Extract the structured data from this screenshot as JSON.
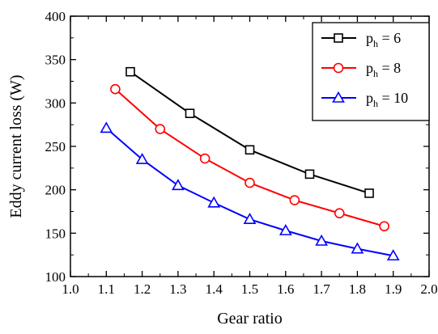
{
  "chart_data": {
    "type": "line",
    "title": "",
    "xlabel": "Gear ratio",
    "ylabel": "Eddy current loss (W)",
    "xlim": [
      1.0,
      2.0
    ],
    "ylim": [
      100,
      400
    ],
    "xticks": [
      "1.0",
      "1.1",
      "1.2",
      "1.3",
      "1.4",
      "1.5",
      "1.6",
      "1.7",
      "1.8",
      "1.9",
      "2.0"
    ],
    "yticks": [
      "100",
      "150",
      "200",
      "250",
      "300",
      "350",
      "400"
    ],
    "grid": false,
    "legend_position": "top-right",
    "series": [
      {
        "name": "p_h = 6",
        "name_main": "p",
        "name_sub": "h",
        "name_rest": " = 6",
        "color": "#000000",
        "marker": "square",
        "x": [
          1.167,
          1.333,
          1.5,
          1.667,
          1.833
        ],
        "y": [
          336,
          288,
          246,
          218,
          196
        ]
      },
      {
        "name": "p_h = 8",
        "name_main": "p",
        "name_sub": "h",
        "name_rest": " = 8",
        "color": "#ff0000",
        "marker": "circle",
        "x": [
          1.125,
          1.25,
          1.375,
          1.5,
          1.625,
          1.75,
          1.875
        ],
        "y": [
          316,
          270,
          236,
          208,
          188,
          173,
          158
        ]
      },
      {
        "name": "p_h = 10",
        "name_main": "p",
        "name_sub": "h",
        "name_rest": " = 10",
        "color": "#0000ff",
        "marker": "triangle",
        "x": [
          1.1,
          1.2,
          1.3,
          1.4,
          1.5,
          1.6,
          1.7,
          1.8,
          1.9
        ],
        "y": [
          271,
          235,
          205,
          185,
          166,
          153,
          141,
          132,
          124
        ]
      }
    ]
  }
}
